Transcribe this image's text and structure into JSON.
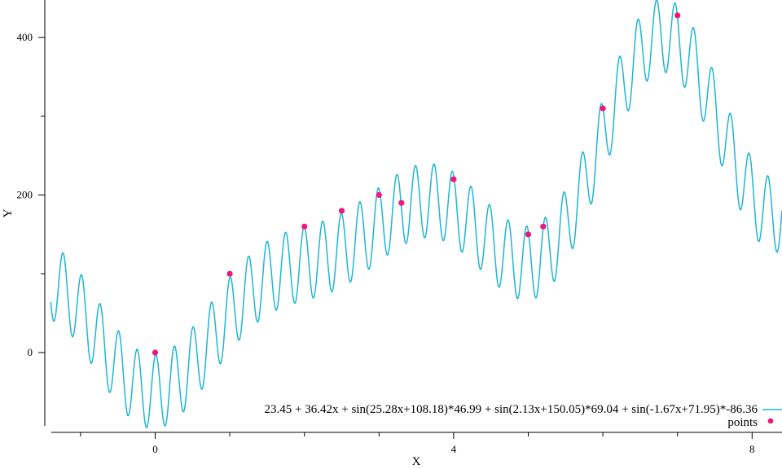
{
  "chart_data": {
    "type": "line",
    "title": "",
    "xlabel": "X",
    "ylabel": "Y",
    "xlim": [
      -1.4,
      8.4
    ],
    "ylim": [
      -95,
      448
    ],
    "grid": false,
    "legend_position": "bottom-right",
    "x_ticks": [
      0,
      4,
      8
    ],
    "x_minor_ticks": [
      -1,
      1,
      2,
      3,
      5,
      6,
      7
    ],
    "y_ticks": [
      0,
      200,
      400
    ],
    "curve": {
      "name": "23.45 + 36.42x + sin(25.28x+108.18)*46.99 + sin(2.13x+150.05)*69.04 + sin(-1.67x+71.95)*-86.36",
      "color": "#1fb6d3",
      "intercept": 23.45,
      "slope": 36.42,
      "sines": [
        {
          "freq": 25.28,
          "phase": 108.18,
          "amp": 46.99
        },
        {
          "freq": 2.13,
          "phase": 150.05,
          "amp": 69.04
        },
        {
          "freq": -1.67,
          "phase": 71.95,
          "amp": -86.36
        }
      ],
      "x_range": [
        -1.4,
        8.4
      ]
    },
    "points": {
      "name": "points",
      "color": "#f0167c",
      "x": [
        0,
        1,
        2,
        2.5,
        3,
        3.3,
        4,
        5,
        5.2,
        6,
        7
      ],
      "y": [
        0,
        100,
        160,
        180,
        200,
        190,
        220,
        150,
        160,
        310,
        428
      ]
    }
  }
}
